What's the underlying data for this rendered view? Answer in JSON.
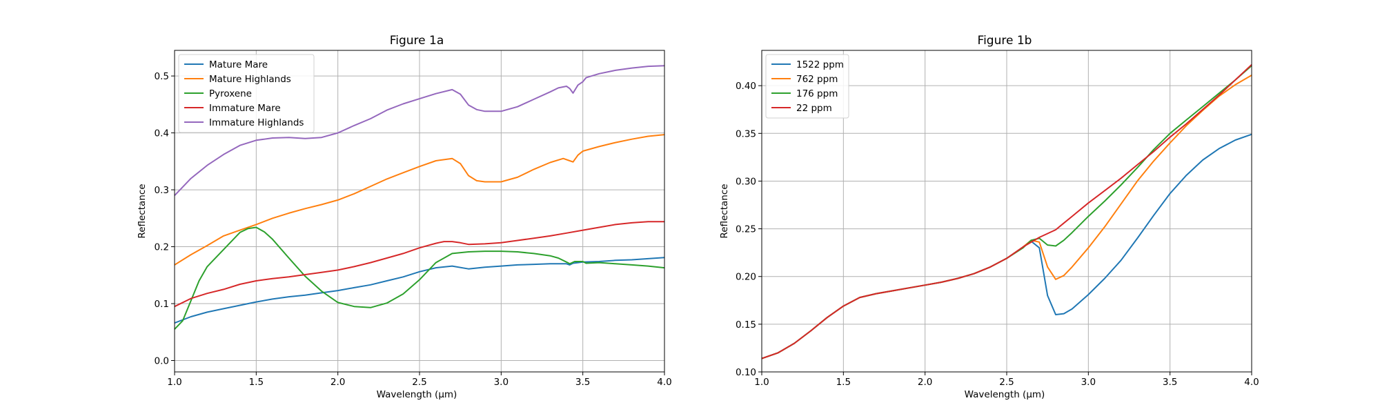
{
  "chart_data": [
    {
      "type": "line",
      "title": "Figure 1a",
      "xlabel": "Wavelength (µm)",
      "ylabel": "Reflectance",
      "xlim": [
        1.0,
        4.0
      ],
      "ylim": [
        -0.02,
        0.545
      ],
      "xticks": [
        1.0,
        1.5,
        2.0,
        2.5,
        3.0,
        3.5,
        4.0
      ],
      "xtick_labels": [
        "1.0",
        "1.5",
        "2.0",
        "2.5",
        "3.0",
        "3.5",
        "4.0"
      ],
      "yticks": [
        0.0,
        0.1,
        0.2,
        0.3,
        0.4,
        0.5
      ],
      "ytick_labels": [
        "0.0",
        "0.1",
        "0.2",
        "0.3",
        "0.4",
        "0.5"
      ],
      "grid": true,
      "legend_position": "top-left",
      "series": [
        {
          "name": "Mature Mare",
          "color": "#1f77b4",
          "x": [
            1.0,
            1.1,
            1.2,
            1.3,
            1.4,
            1.5,
            1.6,
            1.7,
            1.8,
            1.9,
            2.0,
            2.1,
            2.2,
            2.3,
            2.4,
            2.5,
            2.6,
            2.7,
            2.8,
            2.9,
            3.0,
            3.1,
            3.2,
            3.3,
            3.4,
            3.42,
            3.44,
            3.5,
            3.6,
            3.7,
            3.8,
            3.9,
            4.0
          ],
          "y": [
            0.066,
            0.077,
            0.085,
            0.091,
            0.097,
            0.103,
            0.108,
            0.112,
            0.115,
            0.119,
            0.123,
            0.128,
            0.133,
            0.14,
            0.147,
            0.156,
            0.163,
            0.166,
            0.161,
            0.164,
            0.166,
            0.168,
            0.169,
            0.17,
            0.17,
            0.168,
            0.171,
            0.173,
            0.174,
            0.176,
            0.177,
            0.179,
            0.181
          ]
        },
        {
          "name": "Mature Highlands",
          "color": "#ff7f0e",
          "x": [
            1.0,
            1.1,
            1.2,
            1.3,
            1.4,
            1.5,
            1.6,
            1.7,
            1.8,
            1.9,
            2.0,
            2.1,
            2.2,
            2.3,
            2.4,
            2.5,
            2.6,
            2.7,
            2.75,
            2.8,
            2.85,
            2.9,
            3.0,
            3.1,
            3.2,
            3.3,
            3.38,
            3.42,
            3.44,
            3.47,
            3.5,
            3.6,
            3.7,
            3.8,
            3.9,
            4.0
          ],
          "y": [
            0.168,
            0.186,
            0.202,
            0.219,
            0.229,
            0.239,
            0.25,
            0.259,
            0.267,
            0.274,
            0.282,
            0.293,
            0.306,
            0.319,
            0.33,
            0.341,
            0.351,
            0.355,
            0.346,
            0.325,
            0.316,
            0.314,
            0.314,
            0.322,
            0.336,
            0.348,
            0.355,
            0.351,
            0.349,
            0.361,
            0.368,
            0.376,
            0.383,
            0.389,
            0.394,
            0.397
          ]
        },
        {
          "name": "Pyroxene",
          "color": "#2ca02c",
          "x": [
            1.0,
            1.05,
            1.1,
            1.15,
            1.2,
            1.3,
            1.4,
            1.45,
            1.5,
            1.55,
            1.6,
            1.7,
            1.8,
            1.9,
            2.0,
            2.1,
            2.2,
            2.3,
            2.4,
            2.5,
            2.6,
            2.7,
            2.8,
            2.9,
            3.0,
            3.1,
            3.2,
            3.3,
            3.35,
            3.4,
            3.42,
            3.45,
            3.5,
            3.52,
            3.6,
            3.7,
            3.8,
            3.9,
            4.0
          ],
          "y": [
            0.055,
            0.07,
            0.105,
            0.14,
            0.165,
            0.195,
            0.225,
            0.232,
            0.234,
            0.226,
            0.213,
            0.18,
            0.148,
            0.122,
            0.102,
            0.095,
            0.093,
            0.101,
            0.117,
            0.142,
            0.172,
            0.188,
            0.191,
            0.192,
            0.192,
            0.191,
            0.188,
            0.184,
            0.18,
            0.173,
            0.17,
            0.174,
            0.174,
            0.171,
            0.172,
            0.17,
            0.168,
            0.166,
            0.163
          ]
        },
        {
          "name": "Immature Mare",
          "color": "#d62728",
          "x": [
            1.0,
            1.1,
            1.2,
            1.3,
            1.4,
            1.5,
            1.6,
            1.7,
            1.8,
            1.9,
            2.0,
            2.1,
            2.2,
            2.3,
            2.4,
            2.5,
            2.6,
            2.65,
            2.7,
            2.75,
            2.8,
            2.9,
            3.0,
            3.1,
            3.2,
            3.3,
            3.4,
            3.5,
            3.6,
            3.7,
            3.8,
            3.9,
            4.0
          ],
          "y": [
            0.095,
            0.109,
            0.118,
            0.125,
            0.134,
            0.14,
            0.144,
            0.147,
            0.151,
            0.155,
            0.159,
            0.165,
            0.172,
            0.18,
            0.188,
            0.198,
            0.206,
            0.209,
            0.209,
            0.207,
            0.204,
            0.205,
            0.207,
            0.211,
            0.215,
            0.219,
            0.224,
            0.229,
            0.234,
            0.239,
            0.242,
            0.244,
            0.244
          ]
        },
        {
          "name": "Immature Highlands",
          "color": "#9467bd",
          "x": [
            1.0,
            1.1,
            1.2,
            1.3,
            1.4,
            1.5,
            1.6,
            1.7,
            1.8,
            1.9,
            2.0,
            2.1,
            2.2,
            2.3,
            2.4,
            2.5,
            2.6,
            2.7,
            2.75,
            2.8,
            2.85,
            2.9,
            3.0,
            3.1,
            3.2,
            3.3,
            3.35,
            3.4,
            3.42,
            3.44,
            3.47,
            3.5,
            3.52,
            3.6,
            3.7,
            3.8,
            3.9,
            4.0
          ],
          "y": [
            0.29,
            0.32,
            0.343,
            0.362,
            0.378,
            0.387,
            0.391,
            0.392,
            0.39,
            0.392,
            0.4,
            0.413,
            0.425,
            0.44,
            0.451,
            0.46,
            0.469,
            0.476,
            0.468,
            0.449,
            0.441,
            0.438,
            0.438,
            0.446,
            0.459,
            0.472,
            0.479,
            0.482,
            0.478,
            0.47,
            0.484,
            0.49,
            0.497,
            0.504,
            0.51,
            0.514,
            0.517,
            0.518
          ]
        }
      ]
    },
    {
      "type": "line",
      "title": "Figure 1b",
      "xlabel": "Wavelength (µm)",
      "ylabel": "Reflectance",
      "xlim": [
        1.0,
        4.0
      ],
      "ylim": [
        0.1,
        0.437
      ],
      "xticks": [
        1.0,
        1.5,
        2.0,
        2.5,
        3.0,
        3.5,
        4.0
      ],
      "xtick_labels": [
        "1.0",
        "1.5",
        "2.0",
        "2.5",
        "3.0",
        "3.5",
        "4.0"
      ],
      "yticks": [
        0.1,
        0.15,
        0.2,
        0.25,
        0.3,
        0.35,
        0.4
      ],
      "ytick_labels": [
        "0.10",
        "0.15",
        "0.20",
        "0.25",
        "0.30",
        "0.35",
        "0.40"
      ],
      "grid": true,
      "legend_position": "top-left",
      "series": [
        {
          "name": "1522 ppm",
          "color": "#1f77b4",
          "x": [
            1.0,
            1.1,
            1.2,
            1.3,
            1.4,
            1.5,
            1.6,
            1.7,
            1.8,
            1.9,
            2.0,
            2.1,
            2.2,
            2.3,
            2.4,
            2.5,
            2.6,
            2.65,
            2.7,
            2.75,
            2.8,
            2.85,
            2.9,
            3.0,
            3.1,
            3.2,
            3.3,
            3.4,
            3.5,
            3.6,
            3.7,
            3.8,
            3.9,
            4.0
          ],
          "y": [
            0.114,
            0.12,
            0.13,
            0.143,
            0.157,
            0.169,
            0.178,
            0.182,
            0.185,
            0.188,
            0.191,
            0.194,
            0.198,
            0.203,
            0.21,
            0.219,
            0.231,
            0.237,
            0.23,
            0.18,
            0.16,
            0.161,
            0.166,
            0.181,
            0.198,
            0.217,
            0.24,
            0.264,
            0.287,
            0.306,
            0.322,
            0.334,
            0.343,
            0.349
          ]
        },
        {
          "name": "762 ppm",
          "color": "#ff7f0e",
          "x": [
            1.0,
            1.1,
            1.2,
            1.3,
            1.4,
            1.5,
            1.6,
            1.7,
            1.8,
            1.9,
            2.0,
            2.1,
            2.2,
            2.3,
            2.4,
            2.5,
            2.6,
            2.65,
            2.7,
            2.75,
            2.8,
            2.85,
            2.9,
            3.0,
            3.1,
            3.2,
            3.3,
            3.4,
            3.5,
            3.6,
            3.7,
            3.8,
            3.9,
            4.0
          ],
          "y": [
            0.114,
            0.12,
            0.13,
            0.143,
            0.157,
            0.169,
            0.178,
            0.182,
            0.185,
            0.188,
            0.191,
            0.194,
            0.198,
            0.203,
            0.21,
            0.219,
            0.231,
            0.238,
            0.236,
            0.21,
            0.197,
            0.201,
            0.21,
            0.23,
            0.252,
            0.276,
            0.3,
            0.321,
            0.34,
            0.358,
            0.374,
            0.389,
            0.401,
            0.411
          ]
        },
        {
          "name": "176 ppm",
          "color": "#2ca02c",
          "x": [
            1.0,
            1.1,
            1.2,
            1.3,
            1.4,
            1.5,
            1.6,
            1.7,
            1.8,
            1.9,
            2.0,
            2.1,
            2.2,
            2.3,
            2.4,
            2.5,
            2.6,
            2.65,
            2.7,
            2.75,
            2.8,
            2.85,
            2.9,
            3.0,
            3.1,
            3.2,
            3.3,
            3.4,
            3.5,
            3.6,
            3.7,
            3.8,
            3.9,
            4.0
          ],
          "y": [
            0.114,
            0.12,
            0.13,
            0.143,
            0.157,
            0.169,
            0.178,
            0.182,
            0.185,
            0.188,
            0.191,
            0.194,
            0.198,
            0.203,
            0.21,
            0.219,
            0.23,
            0.238,
            0.24,
            0.233,
            0.232,
            0.238,
            0.246,
            0.263,
            0.279,
            0.296,
            0.314,
            0.333,
            0.35,
            0.364,
            0.378,
            0.392,
            0.406,
            0.421
          ]
        },
        {
          "name": "22 ppm",
          "color": "#d62728",
          "x": [
            1.0,
            1.1,
            1.2,
            1.3,
            1.4,
            1.5,
            1.6,
            1.7,
            1.8,
            1.9,
            2.0,
            2.1,
            2.2,
            2.3,
            2.4,
            2.5,
            2.6,
            2.65,
            2.7,
            2.75,
            2.8,
            2.85,
            2.9,
            3.0,
            3.1,
            3.2,
            3.3,
            3.4,
            3.5,
            3.6,
            3.7,
            3.8,
            3.9,
            4.0
          ],
          "y": [
            0.114,
            0.12,
            0.13,
            0.143,
            0.157,
            0.169,
            0.178,
            0.182,
            0.185,
            0.188,
            0.191,
            0.194,
            0.198,
            0.203,
            0.21,
            0.219,
            0.231,
            0.236,
            0.241,
            0.245,
            0.249,
            0.256,
            0.263,
            0.277,
            0.29,
            0.303,
            0.317,
            0.331,
            0.346,
            0.36,
            0.375,
            0.39,
            0.406,
            0.422
          ]
        }
      ]
    }
  ]
}
